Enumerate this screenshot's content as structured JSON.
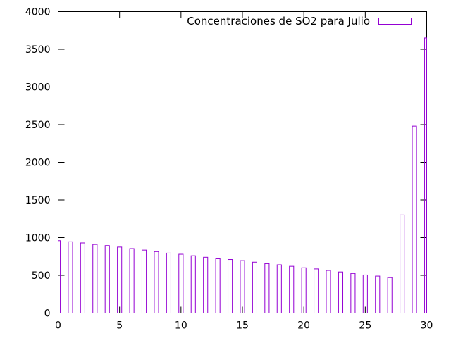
{
  "chart_data": {
    "type": "bar",
    "legend": {
      "label": "Concentraciones de SO2 para Julio",
      "position": "top-right"
    },
    "series": [
      {
        "name": "Concentraciones de SO2 para Julio",
        "x": [
          0,
          1,
          2,
          3,
          4,
          5,
          6,
          7,
          8,
          9,
          10,
          11,
          12,
          13,
          14,
          15,
          16,
          17,
          18,
          19,
          20,
          21,
          22,
          23,
          24,
          25,
          26,
          27,
          28,
          29,
          30
        ],
        "values": [
          960,
          945,
          930,
          910,
          895,
          875,
          855,
          835,
          815,
          795,
          780,
          760,
          740,
          720,
          710,
          695,
          675,
          655,
          640,
          620,
          600,
          585,
          565,
          545,
          525,
          505,
          490,
          470,
          1300,
          2480,
          3650
        ]
      }
    ],
    "xlim": [
      0,
      30
    ],
    "ylim": [
      0,
      4000
    ],
    "xticks": [
      0,
      5,
      10,
      15,
      20,
      25,
      30
    ],
    "yticks": [
      0,
      500,
      1000,
      1500,
      2000,
      2500,
      3000,
      3500,
      4000
    ],
    "grid": false,
    "colors": {
      "bars": "#9400d3",
      "axes": "#000000"
    }
  }
}
